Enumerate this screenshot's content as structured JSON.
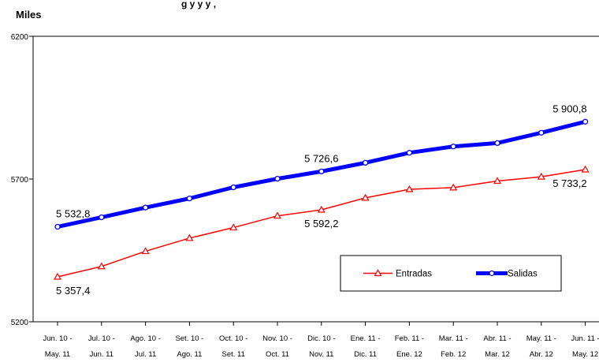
{
  "chart_data": {
    "type": "line",
    "title": "g                                         y                              y      y   ,",
    "ylabel": "Miles",
    "ylim": [
      5200,
      6200
    ],
    "yticks": [
      5200,
      5700,
      6200
    ],
    "categories": [
      [
        "Jun. 10 -",
        "May. 11"
      ],
      [
        "Jul. 10 -",
        "Jun. 11"
      ],
      [
        "Ago. 10 -",
        "Jul. 11"
      ],
      [
        "Set. 10 -",
        "Ago. 11"
      ],
      [
        "Oct. 10 -",
        "Set. 11"
      ],
      [
        "Nov. 10 -",
        "Oct. 11"
      ],
      [
        "Dic. 10 -",
        "Nov. 11"
      ],
      [
        "Ene. 11 -",
        "Dic. 11"
      ],
      [
        "Feb. 11 -",
        "Ene. 12"
      ],
      [
        "Mar. 11 -",
        "Feb. 12"
      ],
      [
        "Abr. 11 -",
        "Mar. 12"
      ],
      [
        "May. 11 -",
        "Abr. 12"
      ],
      [
        "Jun. 11 -",
        "May. 12"
      ]
    ],
    "series": [
      {
        "name": "Entradas",
        "color": "#ff0000",
        "marker": "triangle",
        "values": [
          5357.4,
          5394,
          5447,
          5493,
          5530,
          5571,
          5592.2,
          5634,
          5664,
          5670,
          5693,
          5708,
          5733.2
        ]
      },
      {
        "name": "Salidas",
        "color": "#0000ff",
        "marker": "circle",
        "values": [
          5532.8,
          5566,
          5600,
          5632,
          5671,
          5701,
          5726.6,
          5757,
          5792,
          5814,
          5826,
          5862,
          5900.8
        ]
      }
    ],
    "annotations": [
      {
        "series": 1,
        "index": 0,
        "text": "5 532,8",
        "pos": "above"
      },
      {
        "series": 1,
        "index": 6,
        "text": "5 726,6",
        "pos": "above"
      },
      {
        "series": 1,
        "index": 12,
        "text": "5 900,8",
        "pos": "above"
      },
      {
        "series": 0,
        "index": 0,
        "text": "5 357,4",
        "pos": "below"
      },
      {
        "series": 0,
        "index": 6,
        "text": "5 592,2",
        "pos": "below"
      },
      {
        "series": 0,
        "index": 12,
        "text": "5 733,2",
        "pos": "below"
      }
    ],
    "legend": "inside-bottom-right",
    "grid": false
  }
}
